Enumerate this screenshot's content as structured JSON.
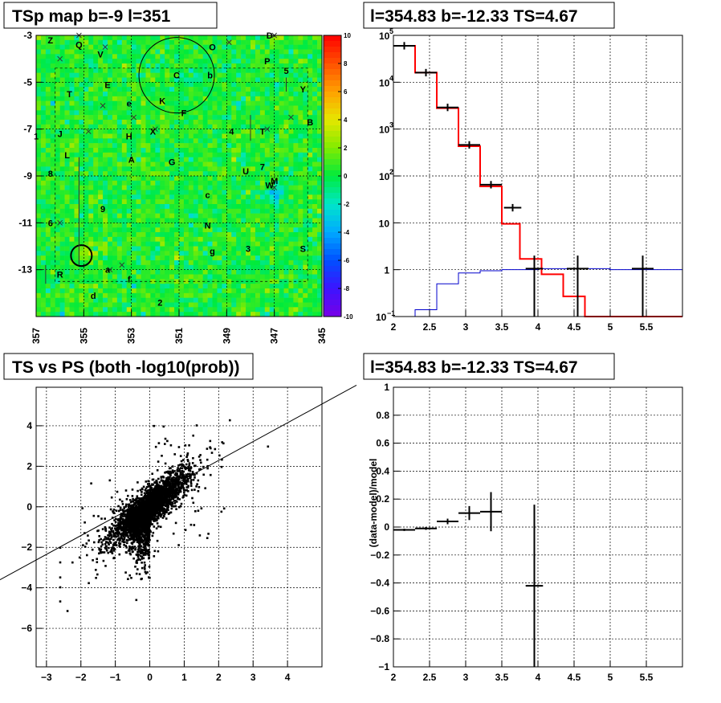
{
  "panels": {
    "tsmap_title": "TSp map b=-9 l=351",
    "spectrum_title": "l=354.83 b=-12.33 TS=4.67",
    "scatter_title": "TS vs PS (both -log10(prob))",
    "residual_title": "l=354.83 b=-12.33 TS=4.67",
    "residual_ylabel": "(data-model)/model"
  },
  "chart_data": [
    {
      "type": "heatmap",
      "title": "TSp map b=-9 l=351",
      "x_ticks": [
        "357",
        "355",
        "353",
        "351",
        "349",
        "347",
        "345"
      ],
      "y_ticks": [
        "-3",
        "-5",
        "-7",
        "-9",
        "-11",
        "-13"
      ],
      "xlim": [
        357,
        345
      ],
      "ylim": [
        -15,
        -3
      ],
      "colorbar_ticks": [
        "10",
        "8",
        "6",
        "4",
        "2",
        "0",
        "-2",
        "-4",
        "-6",
        "-8",
        "-10"
      ],
      "colorbar_range": [
        -10,
        10
      ],
      "source_labels": [
        {
          "text": "Z",
          "l": 356.4,
          "b": -3.2
        },
        {
          "text": "Q",
          "l": 355.2,
          "b": -3.4
        },
        {
          "text": "V",
          "l": 354.3,
          "b": -3.8
        },
        {
          "text": "O",
          "l": 349.6,
          "b": -3.5
        },
        {
          "text": "D",
          "l": 347.2,
          "b": -3.0
        },
        {
          "text": "P",
          "l": 347.3,
          "b": -4.1
        },
        {
          "text": "5",
          "l": 346.5,
          "b": -4.5
        },
        {
          "text": "Y",
          "l": 345.8,
          "b": -5.3
        },
        {
          "text": "E",
          "l": 354.0,
          "b": -5.1
        },
        {
          "text": "C",
          "l": 351.1,
          "b": -4.7
        },
        {
          "text": "b",
          "l": 349.7,
          "b": -4.7
        },
        {
          "text": "T",
          "l": 355.6,
          "b": -5.5
        },
        {
          "text": "e",
          "l": 353.1,
          "b": -5.9
        },
        {
          "text": "K",
          "l": 351.7,
          "b": -5.8
        },
        {
          "text": "F",
          "l": 350.8,
          "b": -6.3
        },
        {
          "text": "B",
          "l": 345.5,
          "b": -6.7
        },
        {
          "text": "J",
          "l": 356.0,
          "b": -7.2
        },
        {
          "text": "H",
          "l": 353.1,
          "b": -7.3
        },
        {
          "text": "X",
          "l": 352.1,
          "b": -7.1
        },
        {
          "text": "4",
          "l": 348.8,
          "b": -7.1
        },
        {
          "text": "T",
          "l": 347.5,
          "b": -7.1
        },
        {
          "text": "1",
          "l": 357.0,
          "b": -7.3
        },
        {
          "text": "L",
          "l": 355.7,
          "b": -8.1
        },
        {
          "text": "A",
          "l": 353.0,
          "b": -8.3
        },
        {
          "text": "G",
          "l": 351.3,
          "b": -8.4
        },
        {
          "text": "7",
          "l": 347.5,
          "b": -8.6
        },
        {
          "text": "U",
          "l": 348.2,
          "b": -8.8
        },
        {
          "text": "M",
          "l": 347.0,
          "b": -9.2
        },
        {
          "text": "W",
          "l": 347.2,
          "b": -9.4
        },
        {
          "text": "8",
          "l": 356.4,
          "b": -8.9
        },
        {
          "text": "c",
          "l": 349.8,
          "b": -9.8
        },
        {
          "text": "9",
          "l": 354.2,
          "b": -10.4
        },
        {
          "text": "6",
          "l": 356.4,
          "b": -11.0
        },
        {
          "text": "N",
          "l": 349.8,
          "b": -11.1
        },
        {
          "text": "g",
          "l": 349.6,
          "b": -12.2
        },
        {
          "text": "3",
          "l": 348.1,
          "b": -12.1
        },
        {
          "text": "S",
          "l": 345.8,
          "b": -12.1
        },
        {
          "text": "a",
          "l": 354.0,
          "b": -13.0
        },
        {
          "text": "R",
          "l": 356.0,
          "b": -13.2
        },
        {
          "text": "f",
          "l": 353.1,
          "b": -13.4
        },
        {
          "text": "d",
          "l": 354.6,
          "b": -14.1
        },
        {
          "text": "2",
          "l": 351.8,
          "b": -14.4
        }
      ]
    },
    {
      "type": "line",
      "title": "l=354.83 b=-12.33 TS=4.67",
      "x_ticks": [
        "2",
        "2.5",
        "3",
        "3.5",
        "4",
        "4.5",
        "5",
        "5.5"
      ],
      "y_ticks": [
        "10^1",
        "1",
        "10",
        "10^2",
        "10^3",
        "10^4",
        "10^5"
      ],
      "xlim": [
        2,
        6
      ],
      "ylim": [
        0.1,
        100000
      ],
      "y_scale": "log",
      "series": [
        {
          "color": "#ff0000",
          "bins": [
            [
              2.0,
              2.3,
              60000
            ],
            [
              2.3,
              2.6,
              16000
            ],
            [
              2.6,
              2.9,
              2800
            ],
            [
              2.9,
              3.2,
              430
            ],
            [
              3.2,
              3.5,
              60
            ],
            [
              3.5,
              3.75,
              9.5
            ],
            [
              3.75,
              4.05,
              1.7
            ],
            [
              4.05,
              4.35,
              0.8
            ],
            [
              4.35,
              4.65,
              0.27
            ],
            [
              4.65,
              5.0,
              0.1
            ],
            [
              5.0,
              6.0,
              0.1
            ]
          ]
        },
        {
          "color": "#0000cc",
          "bins": [
            [
              2.0,
              2.3,
              0.1
            ],
            [
              2.3,
              2.6,
              0.14
            ],
            [
              2.6,
              2.9,
              0.5
            ],
            [
              2.9,
              3.2,
              0.85
            ],
            [
              3.2,
              3.5,
              0.95
            ],
            [
              3.5,
              4.0,
              1.0
            ],
            [
              4.0,
              5.0,
              1.05
            ],
            [
              5.0,
              6.0,
              1.0
            ]
          ]
        },
        {
          "color": "#000000",
          "points": [
            [
              2.15,
              60000,
              0.15,
              0
            ],
            [
              2.45,
              16000,
              0.15,
              0
            ],
            [
              2.75,
              2900,
              0.15,
              0
            ],
            [
              3.05,
              460,
              0.15,
              0
            ],
            [
              3.35,
              65,
              0.15,
              0
            ],
            [
              3.65,
              21,
              0.12,
              0
            ],
            [
              3.95,
              1.05,
              0.12,
              1
            ],
            [
              4.55,
              1.05,
              0.15,
              1
            ],
            [
              5.45,
              1.05,
              0.15,
              1
            ]
          ]
        }
      ]
    },
    {
      "type": "scatter",
      "title": "TS vs PS (both -log10(prob))",
      "x_ticks": [
        "−3",
        "−2",
        "−1",
        "0",
        "1",
        "2",
        "3",
        "4"
      ],
      "y_ticks": [
        "−6",
        "−4",
        "−2",
        "0",
        "2",
        "4"
      ],
      "xlim": [
        -3.3,
        5.0
      ],
      "ylim": [
        -7.9,
        5.9
      ],
      "reference_line": {
        "slope": 1,
        "intercept": 0
      }
    },
    {
      "type": "scatter",
      "title": "l=354.83 b=-12.33 TS=4.67",
      "ylabel": "(data-model)/model",
      "x_ticks": [
        "2",
        "2.5",
        "3",
        "3.5",
        "4",
        "4.5",
        "5",
        "5.5"
      ],
      "y_ticks": [
        "1",
        "0.8",
        "0.6",
        "0.4",
        "0.2",
        "0",
        "−0.2",
        "−0.4",
        "−0.6",
        "−0.8",
        "−1"
      ],
      "xlim": [
        2,
        6
      ],
      "ylim": [
        -1,
        1
      ],
      "points": [
        [
          2.15,
          -0.02,
          0.15,
          0.008
        ],
        [
          2.45,
          -0.01,
          0.15,
          0.01
        ],
        [
          2.75,
          0.04,
          0.15,
          0.02
        ],
        [
          3.05,
          0.1,
          0.15,
          0.05
        ],
        [
          3.35,
          0.11,
          0.15,
          0.14
        ],
        [
          3.95,
          -0.42,
          0.12,
          0.58
        ]
      ]
    }
  ]
}
